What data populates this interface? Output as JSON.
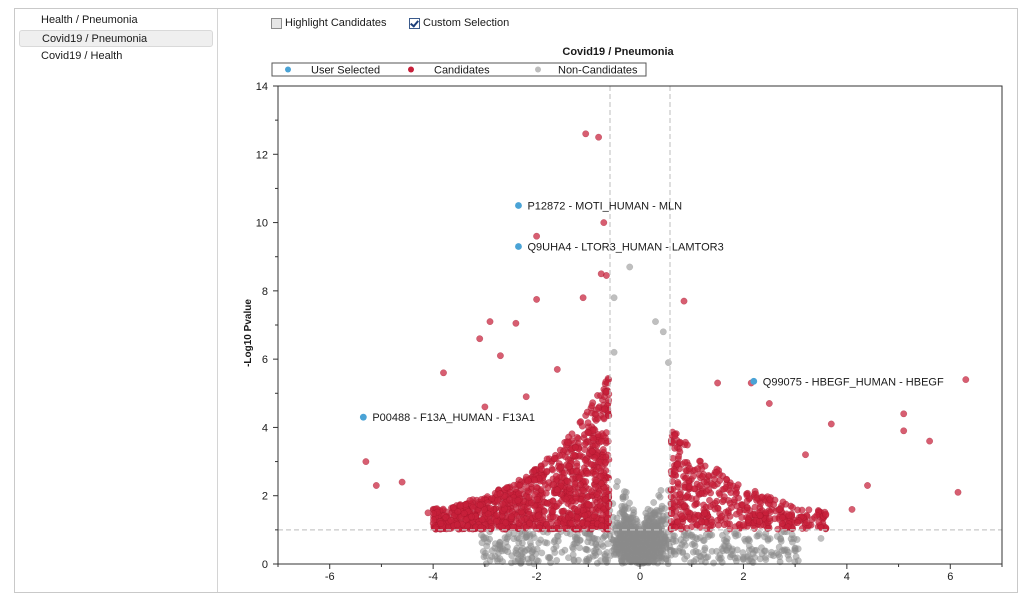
{
  "sidebar": {
    "items": [
      {
        "label": "Health / Pneumonia",
        "selected": false
      },
      {
        "label": "Covid19 / Pneumonia",
        "selected": true
      },
      {
        "label": "Covid19 / Health",
        "selected": false
      }
    ]
  },
  "toolbar": {
    "highlight_candidates": {
      "label": "Highlight Candidates",
      "checked": false
    },
    "custom_selection": {
      "label": "Custom Selection",
      "checked": true
    }
  },
  "colors": {
    "user_selected": "#4aa3d6",
    "candidates": "#c8203a",
    "non_candidates": "#8a8a8a",
    "threshold_line": "#c8c8c8"
  },
  "chart_data": {
    "type": "scatter",
    "title": "Covid19 / Pneumonia",
    "xlabel": "",
    "ylabel": "-Log10 Pvalue",
    "xlim": [
      -7,
      7
    ],
    "ylim": [
      0,
      14
    ],
    "xticks": [
      -6,
      -4,
      -2,
      0,
      2,
      4,
      6
    ],
    "yticks": [
      0,
      2,
      4,
      6,
      8,
      10,
      12,
      14
    ],
    "legend": {
      "placement": "top",
      "entries": [
        "User Selected",
        "Candidates",
        "Non-Candidates"
      ]
    },
    "thresholds": {
      "x": [
        -0.58,
        0.58
      ],
      "y": 1.0
    },
    "user_selected": [
      {
        "x": -2.35,
        "y": 10.5,
        "label": "P12872 - MOTI_HUMAN - MLN"
      },
      {
        "x": -2.35,
        "y": 9.3,
        "label": "Q9UHA4 - LTOR3_HUMAN - LAMTOR3"
      },
      {
        "x": 2.2,
        "y": 5.35,
        "label": "Q99075 - HBEGF_HUMAN - HBEGF"
      },
      {
        "x": -5.35,
        "y": 4.3,
        "label": "P00488 - F13A_HUMAN - F13A1"
      }
    ],
    "candidates_highlights": [
      {
        "x": -1.05,
        "y": 12.6
      },
      {
        "x": -0.8,
        "y": 12.5
      },
      {
        "x": -2.0,
        "y": 9.6
      },
      {
        "x": -0.7,
        "y": 10.0
      },
      {
        "x": -0.75,
        "y": 8.5
      },
      {
        "x": -0.65,
        "y": 8.45
      },
      {
        "x": -1.1,
        "y": 7.8
      },
      {
        "x": 0.85,
        "y": 7.7
      },
      {
        "x": -2.0,
        "y": 7.75
      },
      {
        "x": -2.9,
        "y": 7.1
      },
      {
        "x": -2.4,
        "y": 7.05
      },
      {
        "x": -3.1,
        "y": 6.6
      },
      {
        "x": -2.7,
        "y": 6.1
      },
      {
        "x": 6.3,
        "y": 5.4
      },
      {
        "x": 2.15,
        "y": 5.3
      },
      {
        "x": 1.5,
        "y": 5.3
      },
      {
        "x": -3.8,
        "y": 5.6
      },
      {
        "x": 2.5,
        "y": 4.7
      },
      {
        "x": 5.1,
        "y": 4.4
      },
      {
        "x": 5.1,
        "y": 3.9
      },
      {
        "x": 5.6,
        "y": 3.6
      },
      {
        "x": 6.15,
        "y": 2.1
      },
      {
        "x": -5.1,
        "y": 2.3
      },
      {
        "x": -5.3,
        "y": 3.0
      },
      {
        "x": -4.6,
        "y": 2.4
      },
      {
        "x": -4.1,
        "y": 1.5
      },
      {
        "x": 4.1,
        "y": 1.6
      },
      {
        "x": 4.4,
        "y": 2.3
      },
      {
        "x": 3.2,
        "y": 3.2
      },
      {
        "x": 3.7,
        "y": 4.1
      },
      {
        "x": -3.0,
        "y": 4.6
      },
      {
        "x": -2.2,
        "y": 4.9
      },
      {
        "x": -1.6,
        "y": 5.7
      }
    ],
    "non_candidates_highlights": [
      {
        "x": -0.2,
        "y": 8.7
      },
      {
        "x": 0.3,
        "y": 7.1
      },
      {
        "x": 0.45,
        "y": 6.8
      },
      {
        "x": -0.5,
        "y": 7.8
      },
      {
        "x": 0.55,
        "y": 5.9
      },
      {
        "x": -0.5,
        "y": 6.2
      },
      {
        "x": 2.25,
        "y": 0.4
      },
      {
        "x": 3.5,
        "y": 0.75
      }
    ]
  }
}
